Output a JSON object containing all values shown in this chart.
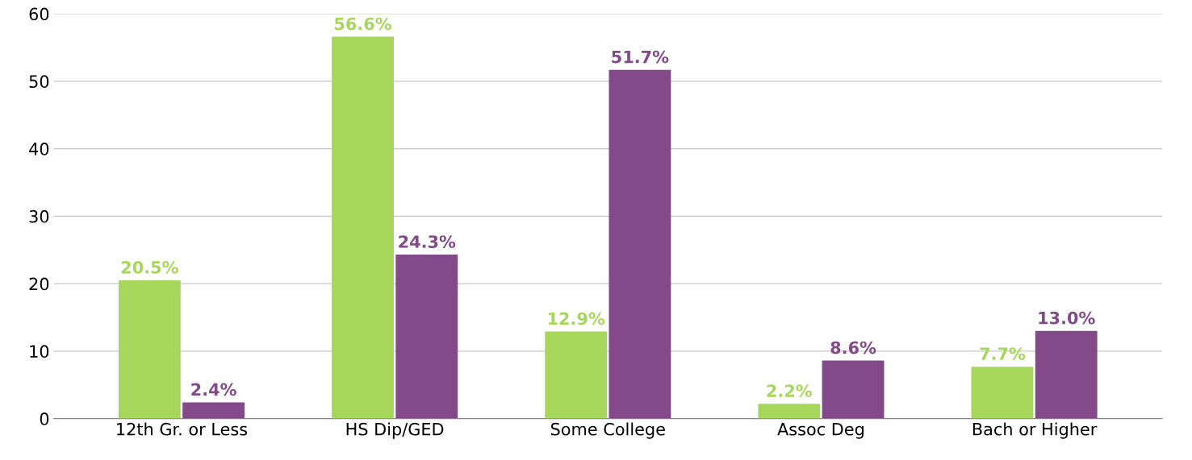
{
  "chart_data": {
    "type": "bar",
    "categories": [
      "12th Gr. or Less",
      "HS Dip/GED",
      "Some College",
      "Assoc Deg",
      "Bach or Higher"
    ],
    "series": [
      {
        "color": "#a6d75b",
        "values": [
          20.5,
          56.6,
          12.9,
          2.2,
          7.7
        ],
        "value_labels": [
          "20.5%",
          "56.6%",
          "12.9%",
          "2.2%",
          "7.7%"
        ]
      },
      {
        "color": "#834a8a",
        "values": [
          2.4,
          24.3,
          51.7,
          8.6,
          13.0
        ],
        "value_labels": [
          "2.4%",
          "24.3%",
          "51.7%",
          "8.6%",
          "13.0%"
        ]
      }
    ],
    "ylim": [
      0,
      60
    ],
    "yticks": [
      0,
      10,
      20,
      30,
      40,
      50,
      60
    ],
    "grid": "y",
    "legend": false
  }
}
